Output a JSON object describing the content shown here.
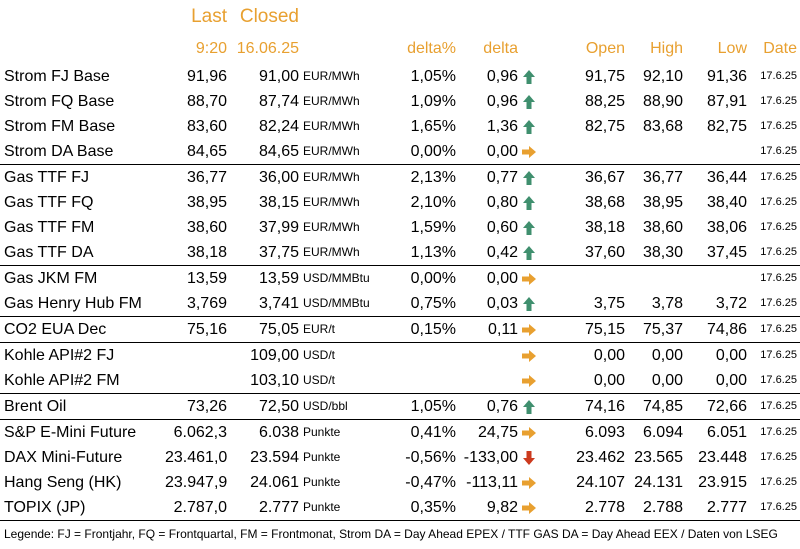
{
  "header": {
    "last_label": "Last",
    "closed_label": "Closed",
    "last_time": "9:20",
    "closed_date": "16.06.25",
    "delta_pct": "delta%",
    "delta": "delta",
    "open": "Open",
    "high": "High",
    "low": "Low",
    "date": "Date"
  },
  "colors": {
    "header": "#e8a030",
    "up": "#3f8f6e",
    "down": "#cc3a1e",
    "flat": "#e8a030"
  },
  "rows": [
    {
      "name": "Strom FJ Base",
      "last": "91,96",
      "closed": "91,00",
      "unit": "EUR/MWh",
      "dpct": "1,05%",
      "delta": "0,96",
      "trend": "up",
      "open": "91,75",
      "high": "92,10",
      "low": "91,36",
      "date": "17.6.25",
      "sep": false
    },
    {
      "name": "Strom FQ Base",
      "last": "88,70",
      "closed": "87,74",
      "unit": "EUR/MWh",
      "dpct": "1,09%",
      "delta": "0,96",
      "trend": "up",
      "open": "88,25",
      "high": "88,90",
      "low": "87,91",
      "date": "17.6.25",
      "sep": false
    },
    {
      "name": "Strom FM Base",
      "last": "83,60",
      "closed": "82,24",
      "unit": "EUR/MWh",
      "dpct": "1,65%",
      "delta": "1,36",
      "trend": "up",
      "open": "82,75",
      "high": "83,68",
      "low": "82,75",
      "date": "17.6.25",
      "sep": false
    },
    {
      "name": "Strom DA Base",
      "last": "84,65",
      "closed": "84,65",
      "unit": "EUR/MWh",
      "dpct": "0,00%",
      "delta": "0,00",
      "trend": "flat",
      "open": "",
      "high": "",
      "low": "",
      "date": "17.6.25",
      "sep": false
    },
    {
      "name": "Gas TTF FJ",
      "last": "36,77",
      "closed": "36,00",
      "unit": "EUR/MWh",
      "dpct": "2,13%",
      "delta": "0,77",
      "trend": "up",
      "open": "36,67",
      "high": "36,77",
      "low": "36,44",
      "date": "17.6.25",
      "sep": true
    },
    {
      "name": "Gas TTF FQ",
      "last": "38,95",
      "closed": "38,15",
      "unit": "EUR/MWh",
      "dpct": "2,10%",
      "delta": "0,80",
      "trend": "up",
      "open": "38,68",
      "high": "38,95",
      "low": "38,40",
      "date": "17.6.25",
      "sep": false
    },
    {
      "name": "Gas TTF FM",
      "last": "38,60",
      "closed": "37,99",
      "unit": "EUR/MWh",
      "dpct": "1,59%",
      "delta": "0,60",
      "trend": "up",
      "open": "38,18",
      "high": "38,60",
      "low": "38,06",
      "date": "17.6.25",
      "sep": false
    },
    {
      "name": "Gas TTF DA",
      "last": "38,18",
      "closed": "37,75",
      "unit": "EUR/MWh",
      "dpct": "1,13%",
      "delta": "0,42",
      "trend": "up",
      "open": "37,60",
      "high": "38,30",
      "low": "37,45",
      "date": "17.6.25",
      "sep": false
    },
    {
      "name": "Gas JKM FM",
      "last": "13,59",
      "closed": "13,59",
      "unit": "USD/MMBtu",
      "dpct": "0,00%",
      "delta": "0,00",
      "trend": "flat",
      "open": "",
      "high": "",
      "low": "",
      "date": "17.6.25",
      "sep": true
    },
    {
      "name": "Gas Henry Hub FM",
      "last": "3,769",
      "closed": "3,741",
      "unit": "USD/MMBtu",
      "dpct": "0,75%",
      "delta": "0,03",
      "trend": "up",
      "open": "3,75",
      "high": "3,78",
      "low": "3,72",
      "date": "17.6.25",
      "sep": false
    },
    {
      "name": "CO2 EUA Dec",
      "last": "75,16",
      "closed": "75,05",
      "unit": "EUR/t",
      "dpct": "0,15%",
      "delta": "0,11",
      "trend": "flat",
      "open": "75,15",
      "high": "75,37",
      "low": "74,86",
      "date": "17.6.25",
      "sep": true
    },
    {
      "name": "Kohle API#2 FJ",
      "last": "",
      "closed": "109,00",
      "unit": "USD/t",
      "dpct": "",
      "delta": "",
      "trend": "flat",
      "open": "0,00",
      "high": "0,00",
      "low": "0,00",
      "date": "17.6.25",
      "sep": true
    },
    {
      "name": "Kohle API#2 FM",
      "last": "",
      "closed": "103,10",
      "unit": "USD/t",
      "dpct": "",
      "delta": "",
      "trend": "flat",
      "open": "0,00",
      "high": "0,00",
      "low": "0,00",
      "date": "17.6.25",
      "sep": false
    },
    {
      "name": "Brent Oil",
      "last": "73,26",
      "closed": "72,50",
      "unit": "USD/bbl",
      "dpct": "1,05%",
      "delta": "0,76",
      "trend": "up",
      "open": "74,16",
      "high": "74,85",
      "low": "72,66",
      "date": "17.6.25",
      "sep": true
    },
    {
      "name": "S&P E-Mini Future",
      "last": "6.062,3",
      "closed": "6.038",
      "unit": "Punkte",
      "dpct": "0,41%",
      "delta": "24,75",
      "trend": "flat",
      "open": "6.093",
      "high": "6.094",
      "low": "6.051",
      "date": "17.6.25",
      "sep": true
    },
    {
      "name": "DAX Mini-Future",
      "last": "23.461,0",
      "closed": "23.594",
      "unit": "Punkte",
      "dpct": "-0,56%",
      "delta": "-133,00",
      "trend": "down",
      "open": "23.462",
      "high": "23.565",
      "low": "23.448",
      "date": "17.6.25",
      "sep": false
    },
    {
      "name": "Hang Seng (HK)",
      "last": "23.947,9",
      "closed": "24.061",
      "unit": "Punkte",
      "dpct": "-0,47%",
      "delta": "-113,11",
      "trend": "flat",
      "open": "24.107",
      "high": "24.131",
      "low": "23.915",
      "date": "17.6.25",
      "sep": false
    },
    {
      "name": "TOPIX (JP)",
      "last": "2.787,0",
      "closed": "2.777",
      "unit": "Punkte",
      "dpct": "0,35%",
      "delta": "9,82",
      "trend": "flat",
      "open": "2.778",
      "high": "2.788",
      "low": "2.777",
      "date": "17.6.25",
      "sep": false
    }
  ],
  "legend": "Legende: FJ = Frontjahr, FQ = Frontquartal, FM = Frontmonat, Strom DA = Day Ahead EPEX / TTF GAS DA = Day Ahead EEX / Daten von LSEG"
}
